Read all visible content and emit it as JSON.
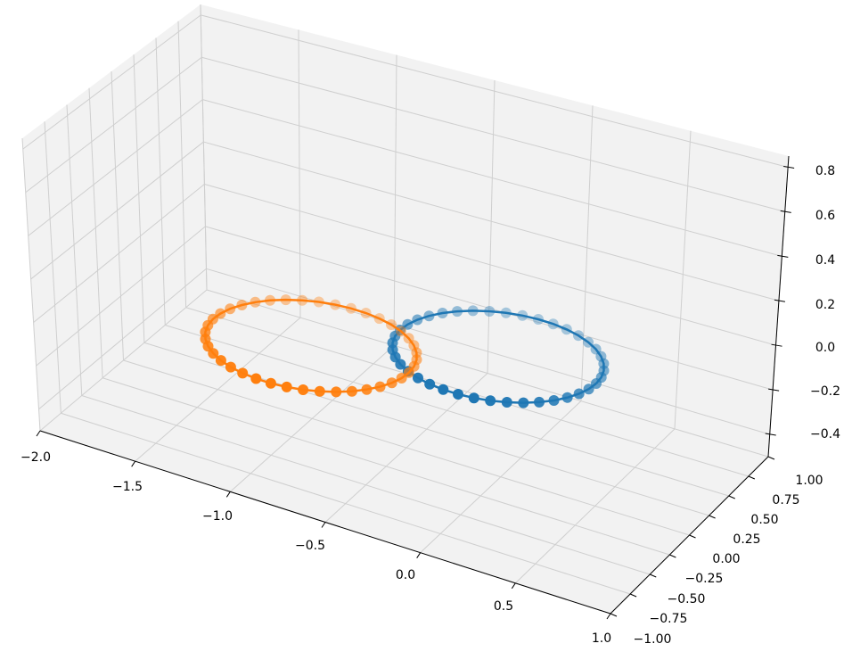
{
  "chart_data": {
    "type": "scatter",
    "projection": "3d",
    "title": "",
    "xlabel": "",
    "ylabel": "",
    "zlabel": "",
    "xlim": [
      -2.0,
      1.0
    ],
    "ylim": [
      -1.0,
      1.0
    ],
    "zlim": [
      -0.5,
      0.85
    ],
    "grid": true,
    "x_ticks": [
      "−2.0",
      "−1.5",
      "−1.0",
      "−0.5",
      "0.0",
      "0.5",
      "1.0"
    ],
    "y_ticks": [
      "−1.00",
      "−0.75",
      "−0.50",
      "−0.25",
      "0.00",
      "0.25",
      "0.50",
      "0.75",
      "1.00"
    ],
    "z_ticks": [
      "−0.4",
      "−0.2",
      "0.0",
      "0.2",
      "0.4",
      "0.6",
      "0.8"
    ],
    "series": [
      {
        "color": "#1f77b4",
        "shape": "circle",
        "center": [
          0.0,
          0.0,
          0.0
        ],
        "radius": 1.0,
        "n_points": 40,
        "style": "line+markers"
      },
      {
        "color": "#ff7f0e",
        "shape": "circle",
        "center": [
          -1.57,
          -0.83,
          0.0
        ],
        "radius": 1.0,
        "n_points": 40,
        "style": "line+markers"
      }
    ],
    "pane_color": "#f2f2f2",
    "grid_color": "#cfcfcf"
  }
}
